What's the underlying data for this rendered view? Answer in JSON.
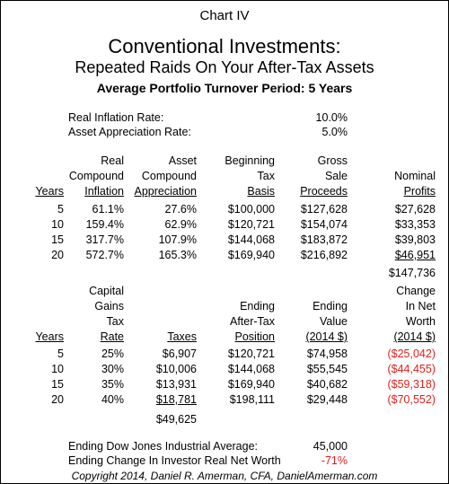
{
  "header": {
    "chart_label": "Chart IV",
    "title": "Conventional Investments:",
    "subtitle": "Repeated Raids On Your After-Tax Assets",
    "period": "Average Portfolio Turnover Period:  5 Years"
  },
  "params": {
    "rows": [
      [
        "Real Inflation Rate:",
        "10.0%"
      ],
      [
        "Asset Appreciation Rate:",
        "5.0%"
      ]
    ]
  },
  "table1": {
    "headers": [
      [
        "Years"
      ],
      [
        "Real",
        "Compound",
        "Inflation"
      ],
      [
        "Asset",
        "Compound",
        "Appreciation"
      ],
      [
        "Beginning",
        "Tax",
        "Basis"
      ],
      [
        "Gross",
        "Sale",
        "Proceeds"
      ],
      [
        "Nominal",
        "Profits"
      ]
    ],
    "rows": [
      [
        "5",
        "61.1%",
        "27.6%",
        "$100,000",
        "$127,628",
        "$27,628"
      ],
      [
        "10",
        "159.4%",
        "62.9%",
        "$120,721",
        "$154,074",
        "$33,353"
      ],
      [
        "15",
        "317.7%",
        "107.9%",
        "$144,068",
        "$183,872",
        "$39,803"
      ],
      [
        "20",
        "572.7%",
        "165.3%",
        "$169,940",
        "$216,892",
        "$46,951"
      ]
    ],
    "total": "$147,736"
  },
  "table2": {
    "headers": [
      [
        "Years"
      ],
      [
        "Capital",
        "Gains",
        "Tax",
        "Rate"
      ],
      [
        "Taxes"
      ],
      [
        "Ending",
        "After-Tax",
        "Position"
      ],
      [
        "Ending",
        "Value",
        "(2014 $)"
      ],
      [
        "Change",
        "In Net",
        "Worth",
        "(2014 $)"
      ]
    ],
    "rows": [
      [
        "5",
        "25%",
        "$6,907",
        "$120,721",
        "$74,958",
        "($25,042)"
      ],
      [
        "10",
        "30%",
        "$10,006",
        "$144,068",
        "$55,545",
        "($44,455)"
      ],
      [
        "15",
        "35%",
        "$13,931",
        "$169,940",
        "$40,682",
        "($59,318)"
      ],
      [
        "20",
        "40%",
        "$18,781",
        "$198,111",
        "$29,448",
        "($70,552)"
      ]
    ],
    "total": "$49,625"
  },
  "footer": {
    "rows": [
      [
        "Ending Dow Jones Industrial Average:",
        "45,000"
      ],
      [
        "Ending Change In Investor Real Net Worth",
        "-71%"
      ]
    ],
    "copyright": "Copyright 2014, Daniel R. Amerman, CFA, DanielAmerman.com"
  }
}
